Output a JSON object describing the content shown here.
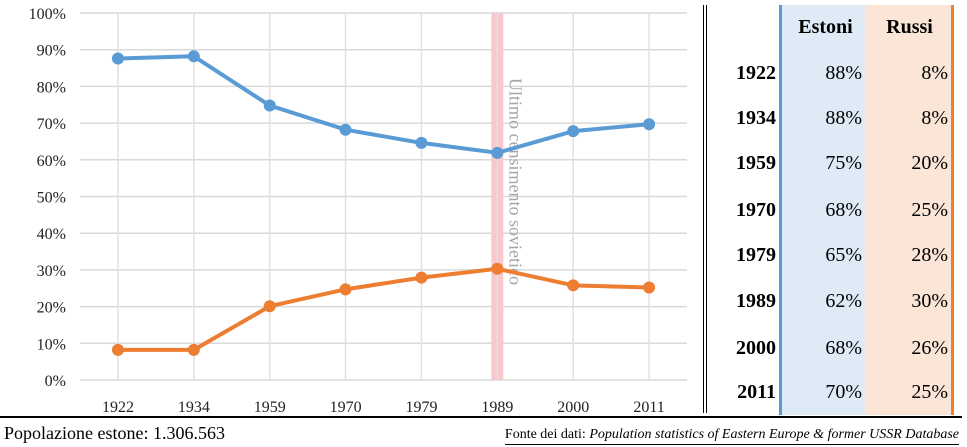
{
  "chart_data": {
    "type": "line",
    "categories": [
      "1922",
      "1934",
      "1959",
      "1970",
      "1979",
      "1989",
      "2000",
      "2011"
    ],
    "yticks": [
      "0%",
      "10%",
      "20%",
      "30%",
      "40%",
      "50%",
      "60%",
      "70%",
      "80%",
      "90%",
      "100%"
    ],
    "ylim": [
      0,
      100
    ],
    "grid": true,
    "series": [
      {
        "name": "Estoni",
        "color": "#5b9bd5",
        "values": [
          87.6,
          88.2,
          74.8,
          68.2,
          64.6,
          61.9,
          67.8,
          69.7
        ]
      },
      {
        "name": "Russi",
        "color": "#ed7d31",
        "values": [
          8.2,
          8.2,
          20.1,
          24.7,
          27.9,
          30.3,
          25.8,
          25.2
        ]
      }
    ],
    "annotation": {
      "category": "1989",
      "text": "Ultimo censimento sovietico",
      "color": "#f8c8cc"
    }
  },
  "table": {
    "headers": [
      "Estoni",
      "Russi"
    ],
    "rows": [
      {
        "year": "1922",
        "estoni": "88%",
        "russi": "8%"
      },
      {
        "year": "1934",
        "estoni": "88%",
        "russi": "8%"
      },
      {
        "year": "1959",
        "estoni": "75%",
        "russi": "20%"
      },
      {
        "year": "1970",
        "estoni": "68%",
        "russi": "25%"
      },
      {
        "year": "1979",
        "estoni": "65%",
        "russi": "28%"
      },
      {
        "year": "1989",
        "estoni": "62%",
        "russi": "30%"
      },
      {
        "year": "2000",
        "estoni": "68%",
        "russi": "26%"
      },
      {
        "year": "2011",
        "estoni": "70%",
        "russi": "25%"
      }
    ]
  },
  "footer": {
    "population": "Popolazione estone: 1.306.563",
    "source_label": "Fonte dei dati: ",
    "source": "Population statistics of Eastern Europe & former USSR Database"
  }
}
